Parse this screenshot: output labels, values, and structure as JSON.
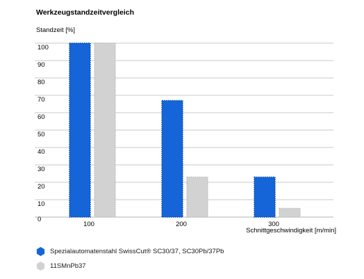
{
  "title": "Werkzeugstandzeitvergleich",
  "chart_data": {
    "type": "bar",
    "title": "Werkzeugstandzeitvergleich",
    "ylabel": "Standzeit [%]",
    "xlabel": "Schnittgeschwindigkeit [m/min]",
    "categories": [
      "100",
      "200",
      "300"
    ],
    "ylim": [
      0,
      100
    ],
    "yticks": [
      0,
      10,
      20,
      30,
      40,
      50,
      60,
      70,
      80,
      90,
      100
    ],
    "grid": true,
    "legend_position": "bottom-left",
    "series": [
      {
        "name": "Spezialautomatenstahl SwissCut® SC30/37, SC30Pb/37Pb",
        "values": [
          100,
          67,
          23
        ],
        "color": "#1565d8"
      },
      {
        "name": "11SMnPb37",
        "values": [
          100,
          23,
          5
        ],
        "color": "#d2d2d2"
      }
    ]
  },
  "legend": [
    {
      "label": "Spezialautomatenstahl SwissCut® SC30/37, SC30Pb/37Pb",
      "color": "#1565d8"
    },
    {
      "label": "11SMnPb37",
      "color": "#d2d2d2"
    }
  ]
}
